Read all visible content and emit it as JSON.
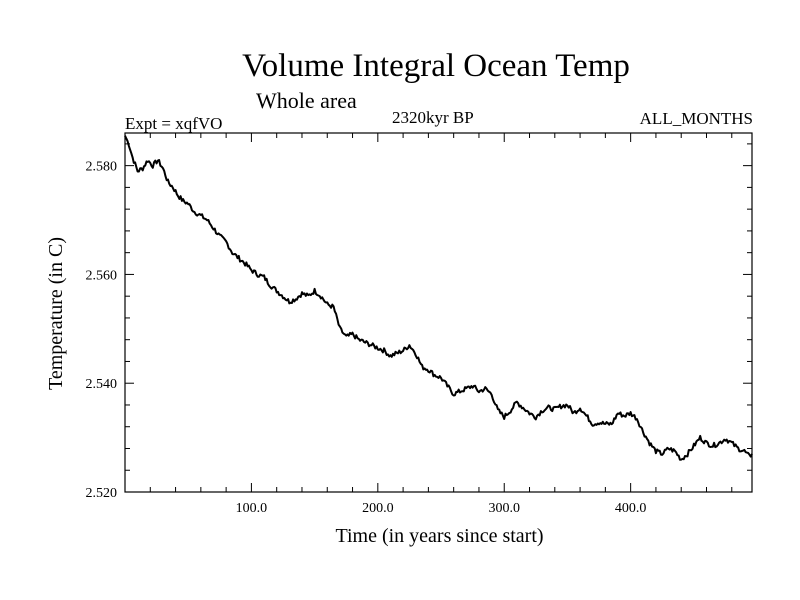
{
  "chart_data": {
    "type": "line",
    "title": "Volume Integral Ocean Temp",
    "subtitle": "Whole area",
    "annotations": {
      "left": "Expt = xqfVO",
      "center": "2320kyr BP",
      "right": "ALL_MONTHS"
    },
    "xlabel": "Time (in years since start)",
    "ylabel": "Temperature (in C)",
    "xlim": [
      0,
      496
    ],
    "ylim": [
      2.52,
      2.586
    ],
    "xticks": [
      100,
      200,
      300,
      400
    ],
    "xtick_labels": [
      "100.0",
      "200.0",
      "300.0",
      "400.0"
    ],
    "yticks": [
      2.52,
      2.54,
      2.56,
      2.58
    ],
    "ytick_labels": [
      "2.520",
      "2.540",
      "2.560",
      "2.580"
    ],
    "grid": false,
    "series": [
      {
        "name": "Volume Integral Ocean Temp",
        "x": [
          0,
          3,
          6,
          10,
          14,
          18,
          22,
          26,
          30,
          34,
          38,
          42,
          46,
          50,
          55,
          60,
          65,
          70,
          75,
          80,
          85,
          90,
          95,
          100,
          105,
          110,
          115,
          120,
          125,
          130,
          135,
          140,
          145,
          150,
          155,
          160,
          165,
          170,
          175,
          180,
          185,
          190,
          195,
          200,
          205,
          210,
          215,
          220,
          225,
          230,
          235,
          240,
          245,
          250,
          255,
          260,
          265,
          270,
          275,
          280,
          285,
          290,
          295,
          300,
          305,
          310,
          315,
          320,
          325,
          330,
          335,
          340,
          345,
          350,
          355,
          360,
          365,
          370,
          375,
          380,
          385,
          390,
          395,
          400,
          405,
          410,
          415,
          420,
          425,
          430,
          435,
          440,
          445,
          450,
          455,
          460,
          465,
          470,
          475,
          480,
          485,
          490,
          494,
          496
        ],
        "y": [
          2.5855,
          2.584,
          2.5815,
          2.579,
          2.5795,
          2.581,
          2.58,
          2.581,
          2.5795,
          2.577,
          2.576,
          2.5745,
          2.5735,
          2.573,
          2.5715,
          2.5708,
          2.57,
          2.5685,
          2.567,
          2.566,
          2.564,
          2.563,
          2.562,
          2.5608,
          2.56,
          2.5595,
          2.558,
          2.557,
          2.556,
          2.555,
          2.5555,
          2.5565,
          2.556,
          2.557,
          2.556,
          2.5545,
          2.554,
          2.55,
          2.5485,
          2.549,
          2.548,
          2.5475,
          2.547,
          2.5465,
          2.546,
          2.545,
          2.5455,
          2.546,
          2.547,
          2.5455,
          2.543,
          2.5425,
          2.5415,
          2.541,
          2.5395,
          2.538,
          2.5385,
          2.539,
          2.5395,
          2.5385,
          2.539,
          2.538,
          2.535,
          2.5338,
          2.535,
          2.5365,
          2.5355,
          2.5345,
          2.5338,
          2.535,
          2.5355,
          2.5352,
          2.5358,
          2.536,
          2.5345,
          2.5355,
          2.534,
          2.5325,
          2.5328,
          2.5325,
          2.5325,
          2.5345,
          2.534,
          2.5345,
          2.5335,
          2.531,
          2.529,
          2.5275,
          2.527,
          2.528,
          2.5275,
          2.526,
          2.527,
          2.5285,
          2.53,
          2.529,
          2.5285,
          2.529,
          2.5298,
          2.529,
          2.528,
          2.5275,
          2.5265,
          2.527
        ]
      }
    ]
  }
}
